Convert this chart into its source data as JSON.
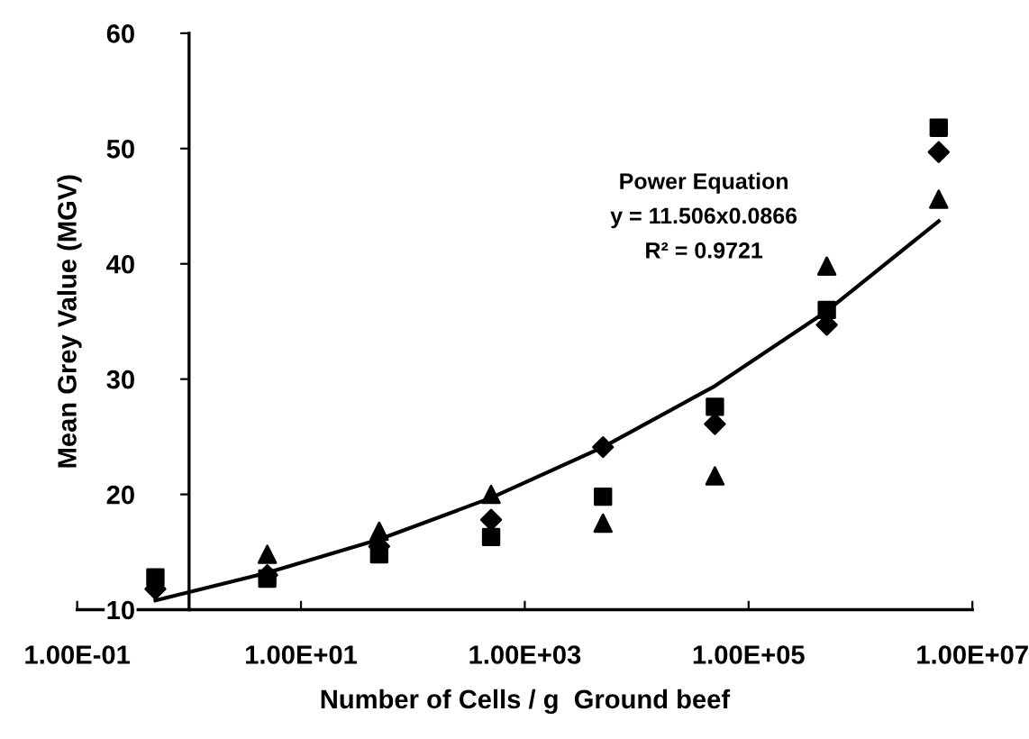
{
  "chart_data": {
    "type": "scatter",
    "xlabel": "Number of Cells / g  Ground beef",
    "ylabel": "Mean Grey Value (MGV)",
    "log": "x",
    "xlim": [
      0.1,
      10000000
    ],
    "xticks": [
      {
        "value": 0.1,
        "label": "1.00E-01"
      },
      {
        "value": 10,
        "label": "1.00E+01"
      },
      {
        "value": 1000,
        "label": "1.00E+03"
      },
      {
        "value": 100000,
        "label": "1.00E+05"
      },
      {
        "value": 10000000,
        "label": "1.00E+07"
      }
    ],
    "ylim": [
      10,
      60
    ],
    "yticks": [
      10,
      20,
      30,
      40,
      50,
      60
    ],
    "grid": false,
    "x": [
      0.5,
      5,
      50,
      500,
      5000,
      50000,
      500000,
      5000000
    ],
    "series": [
      {
        "color": "#000000",
        "marker": "diamond",
        "values": [
          11.8,
          13,
          15.5,
          17.8,
          24.1,
          26.1,
          34.7,
          49.7
        ]
      },
      {
        "color": "#000000",
        "marker": "square",
        "values": [
          12.8,
          12.7,
          14.8,
          16.3,
          19.8,
          27.6,
          36,
          51.8
        ]
      },
      {
        "color": "#000000",
        "marker": "triangle",
        "values": [
          null,
          14.8,
          16.8,
          20,
          17.5,
          21.6,
          39.8,
          45.6
        ]
      },
      {
        "type": "line",
        "color": "#000000",
        "marker": "none",
        "line_style": "solid",
        "values": [
          10.8,
          13.2,
          16.1,
          19.7,
          24.1,
          29.4,
          35.9,
          43.7
        ]
      }
    ],
    "annotations": [
      "Power Equation",
      "y = 11.506x0.0866",
      "R² = 0.9721"
    ]
  }
}
